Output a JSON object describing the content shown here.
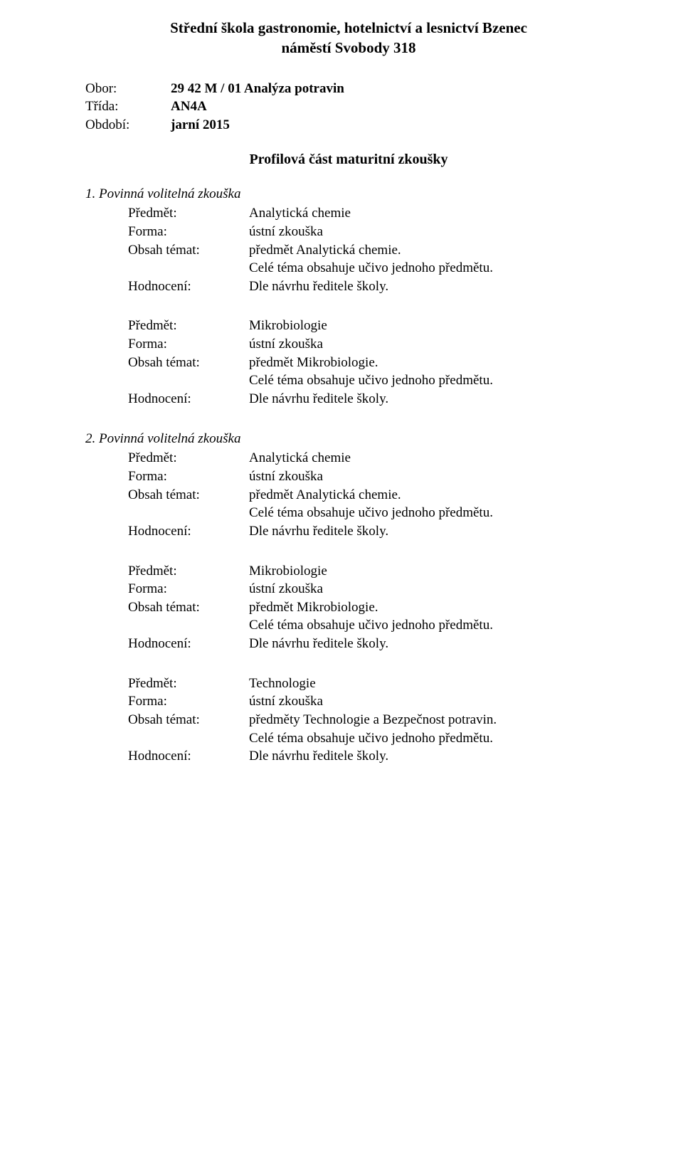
{
  "header": {
    "line1": "Střední škola gastronomie, hotelnictví a lesnictví Bzenec",
    "line2": "náměstí Svobody 318"
  },
  "info": {
    "obor_label": "Obor:",
    "obor_value": "29 42 M / 01 Analýza potravin",
    "trida_label": "Třída:",
    "trida_value": "AN4A",
    "obdobi_label": "Období:",
    "obdobi_value": "jarní 2015"
  },
  "profile_heading": "Profilová část maturitní zkoušky",
  "labels": {
    "predmet": "Předmět:",
    "forma": "Forma:",
    "obsah": "Obsah témat:",
    "hodnoceni": "Hodnocení:"
  },
  "common": {
    "forma_value": "ústní zkouška",
    "cele_tema": "Celé téma obsahuje učivo jednoho předmětu.",
    "hodnoceni_value": "Dle návrhu ředitele školy."
  },
  "section1": {
    "heading": "1. Povinná volitelná zkouška",
    "subject1": {
      "predmet": "Analytická chemie",
      "obsah": "předmět Analytická chemie."
    },
    "subject2": {
      "predmet": "Mikrobiologie",
      "obsah": "předmět Mikrobiologie."
    }
  },
  "section2": {
    "heading": "2. Povinná volitelná zkouška",
    "subject1": {
      "predmet": "Analytická chemie",
      "obsah": "předmět Analytická chemie."
    },
    "subject2": {
      "predmet": "Mikrobiologie",
      "obsah": "předmět Mikrobiologie."
    },
    "subject3": {
      "predmet": "Technologie",
      "obsah": "předměty Technologie a Bezpečnost potravin."
    }
  }
}
